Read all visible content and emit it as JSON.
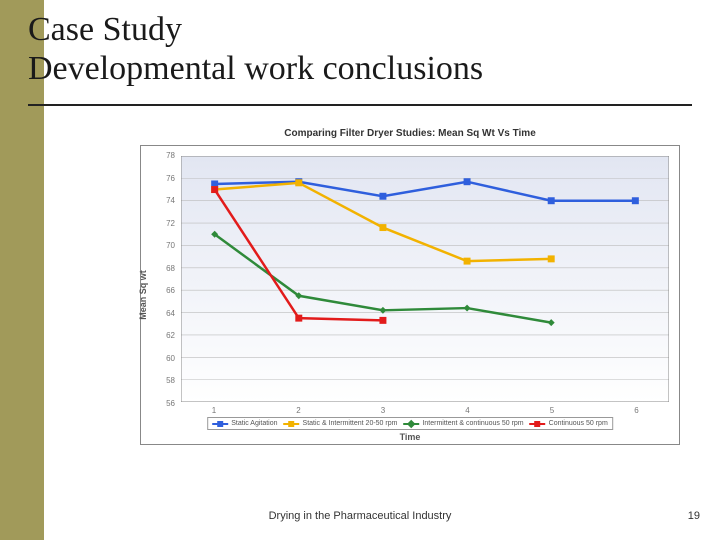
{
  "slide": {
    "title_line1": "Case Study",
    "title_line2": "Developmental work conclusions",
    "footer": "Drying in the Pharmaceutical Industry",
    "page_number": "19",
    "accent_color": "#a19a5a"
  },
  "chart": {
    "type": "line",
    "title": "Comparing Filter Dryer Studies: Mean Sq Wt Vs Time",
    "title_fontsize": 10,
    "xlabel": "Time",
    "ylabel": "Mean Sq wt",
    "label_fontsize": 9,
    "background_gradient_top": "#e2e6f2",
    "background_gradient_bottom": "#ffffff",
    "border_color": "#888888",
    "grid_color": "#bcbcbc",
    "tick_font_color": "#777777",
    "xlim": [
      0.6,
      6.4
    ],
    "ylim": [
      56,
      78
    ],
    "ytick_step": 2,
    "xtick_step": 1,
    "x_ticks": [
      1,
      2,
      3,
      4,
      5,
      6
    ],
    "y_ticks": [
      56,
      58,
      60,
      62,
      64,
      66,
      68,
      70,
      72,
      74,
      76,
      78
    ],
    "line_width": 2.5,
    "marker_size": 7,
    "series": [
      {
        "name": "Static Agitation",
        "color": "#2f5fdd",
        "marker": "square",
        "x": [
          1,
          2,
          3,
          4,
          5,
          6
        ],
        "y": [
          75.5,
          75.7,
          74.4,
          75.7,
          74.0,
          74.0
        ]
      },
      {
        "name": "Static & Intermittent 20-50 rpm",
        "color": "#f2b200",
        "marker": "square",
        "x": [
          1,
          2,
          3,
          4,
          5
        ],
        "y": [
          75.0,
          75.6,
          71.6,
          68.6,
          68.8
        ]
      },
      {
        "name": "Intermittent & continuous  50 rpm",
        "color": "#2f8a3a",
        "marker": "diamond",
        "x": [
          1,
          2,
          3,
          4,
          5
        ],
        "y": [
          71.0,
          65.5,
          64.2,
          64.4,
          63.1
        ]
      },
      {
        "name": "Continuous 50 rpm",
        "color": "#e21b1b",
        "marker": "square",
        "x": [
          1,
          2,
          3
        ],
        "y": [
          75.0,
          63.5,
          63.3
        ]
      }
    ],
    "legend": {
      "position": "bottom-inside",
      "border_color": "#999999",
      "bg_color": "#ffffff",
      "fontsize": 7
    }
  }
}
